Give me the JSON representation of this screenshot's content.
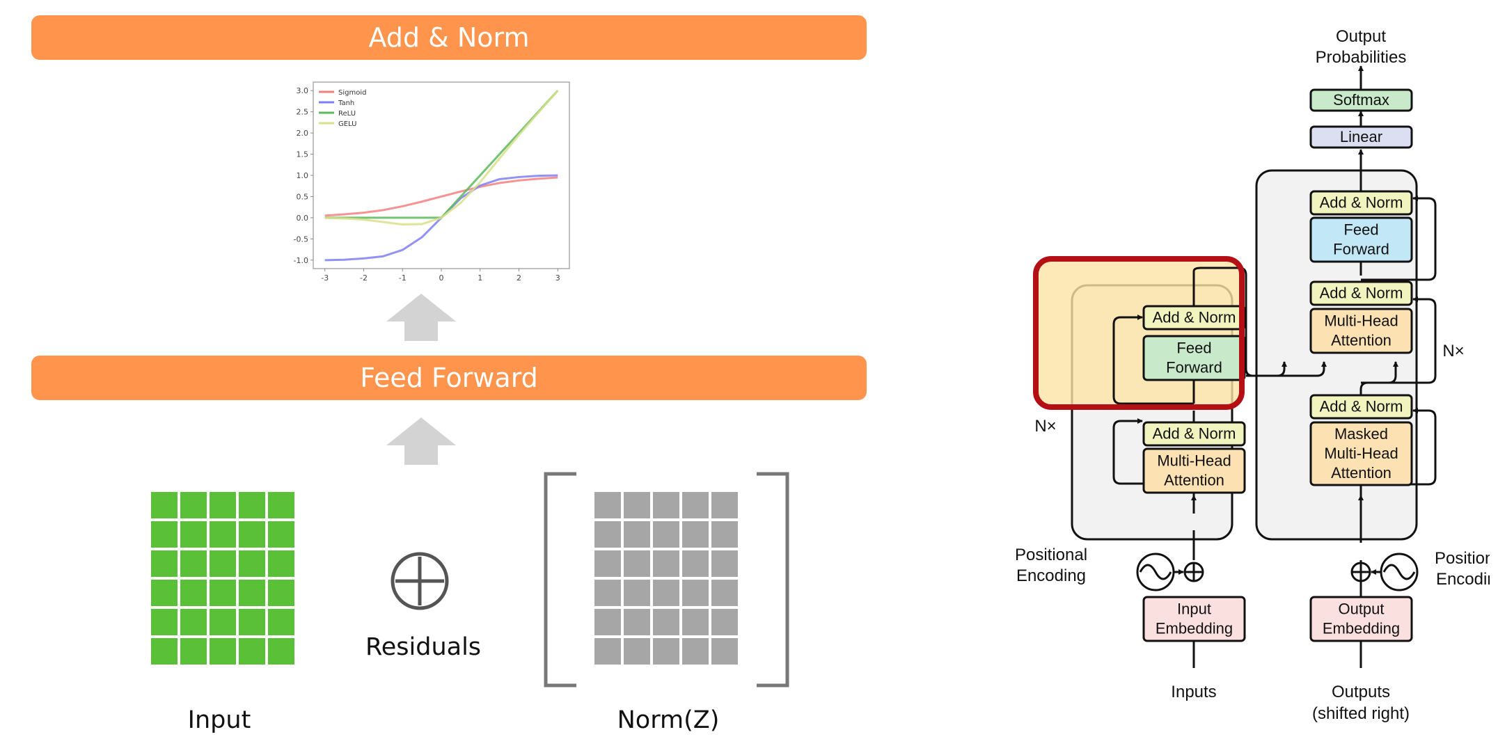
{
  "bands": {
    "top": "Add & Norm",
    "middle": "Feed Forward"
  },
  "captions": {
    "residuals": "Residuals",
    "input": "Input",
    "norm": "Norm(Z)"
  },
  "colors": {
    "band": "#ff944d",
    "grid_green": "#5ac037",
    "grid_gray": "#a6a6a6",
    "arrow": "#d3d3d3",
    "highlight": "#b30f14"
  },
  "icons": {
    "residual_op": "circle-plus-icon",
    "arrows": "up-arrow-icon"
  },
  "matrices": {
    "rows": 6,
    "cols": 5
  },
  "chart_data": {
    "type": "line",
    "x": [
      -3,
      -2.5,
      -2,
      -1.5,
      -1,
      -0.5,
      0,
      0.5,
      1,
      1.5,
      2,
      2.5,
      3
    ],
    "series": [
      {
        "name": "Sigmoid",
        "color": "#f47f7f",
        "values": [
          0.05,
          0.08,
          0.12,
          0.18,
          0.27,
          0.38,
          0.5,
          0.62,
          0.73,
          0.82,
          0.88,
          0.92,
          0.95
        ]
      },
      {
        "name": "Tanh",
        "color": "#7f7ff4",
        "values": [
          -1.0,
          -0.99,
          -0.96,
          -0.91,
          -0.76,
          -0.46,
          0.0,
          0.46,
          0.76,
          0.91,
          0.96,
          0.99,
          1.0
        ]
      },
      {
        "name": "ReLU",
        "color": "#5cb85c",
        "values": [
          0,
          0,
          0,
          0,
          0,
          0,
          0,
          0.5,
          1.0,
          1.5,
          2.0,
          2.5,
          3.0
        ]
      },
      {
        "name": "GELU",
        "color": "#d8e08a",
        "values": [
          -0.004,
          -0.016,
          -0.045,
          -0.1,
          -0.16,
          -0.15,
          0,
          0.35,
          0.84,
          1.4,
          1.95,
          2.48,
          3.0
        ]
      }
    ],
    "xticks": [
      "-3",
      "-2",
      "-1",
      "0",
      "1",
      "2",
      "3"
    ],
    "yticks": [
      "3.0",
      "2.5",
      "2.0",
      "1.5",
      "1.0",
      "0.5",
      "0.0",
      "-0.5",
      "-1.0"
    ],
    "xlim": [
      -3.3,
      3.3
    ],
    "ylim": [
      -1.2,
      3.2
    ],
    "legend_position": "top-left",
    "grid": false
  },
  "transformer": {
    "output_probabilities": [
      "Output",
      "Probabilities"
    ],
    "softmax": "Softmax",
    "linear": "Linear",
    "add_norm": "Add & Norm",
    "feed_forward": [
      "Feed",
      "Forward"
    ],
    "multi_head": [
      "Multi-Head",
      "Attention"
    ],
    "masked_multi_head": [
      "Masked",
      "Multi-Head",
      "Attention"
    ],
    "nx": "N×",
    "positional_encoding": [
      "Positional",
      "Encoding"
    ],
    "input_embedding": [
      "Input",
      "Embedding"
    ],
    "output_embedding": [
      "Output",
      "Embedding"
    ],
    "inputs": "Inputs",
    "outputs": [
      "Outputs",
      "(shifted right)"
    ],
    "colors": {
      "add_norm": "#f1f4be",
      "feed_forward": "#c2e8f7",
      "attention": "#fce1b3",
      "embedding": "#fbe0e0",
      "softmax": "#c8eacb",
      "linear": "#dcdff2",
      "stack_bg": "#f2f2f2",
      "highlight_fill": "#fce3a6"
    }
  }
}
